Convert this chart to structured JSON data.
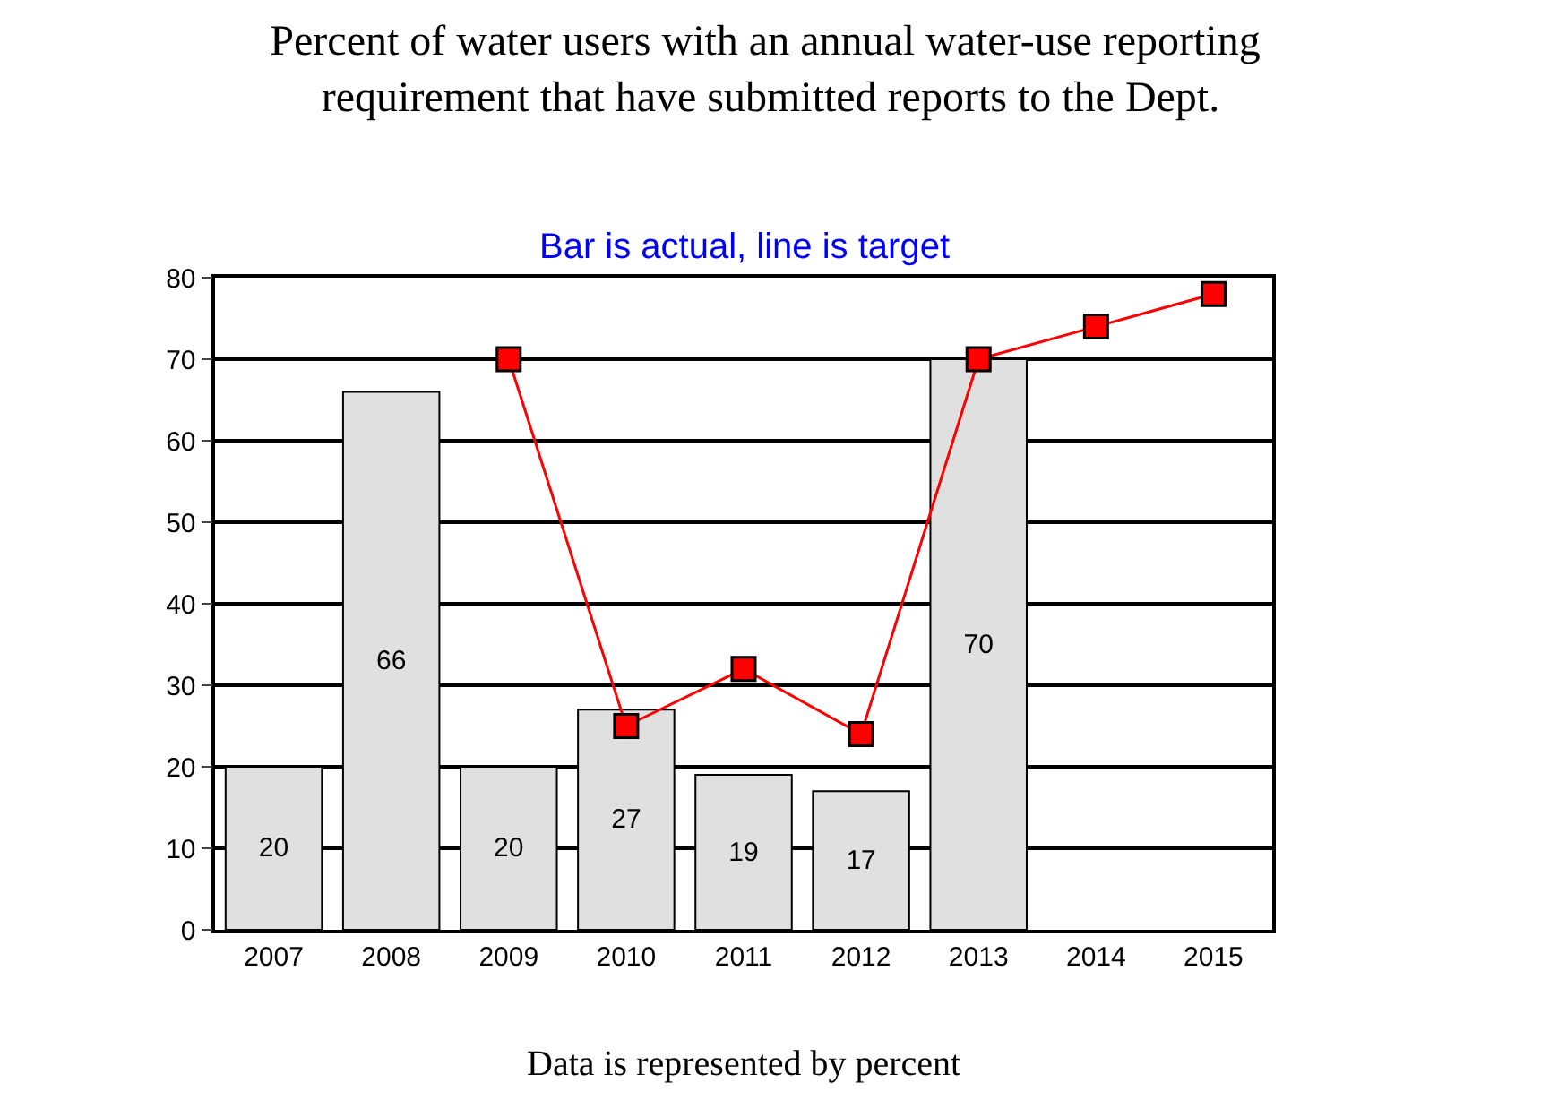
{
  "chart_data": {
    "type": "bar",
    "title": "Percent of water users with an annual water-use reporting requirement that have submitted reports to the Dept.",
    "subtitle": "Bar is actual, line is target",
    "categories": [
      "2007",
      "2008",
      "2009",
      "2010",
      "2011",
      "2012",
      "2013",
      "2014",
      "2015"
    ],
    "series": [
      {
        "color": "#e0e0e0",
        "values": [
          20,
          66,
          20,
          27,
          19,
          17,
          70,
          null,
          null
        ],
        "value_labels": [
          "20",
          "66",
          "20",
          "27",
          "19",
          "17",
          "70",
          null,
          null
        ]
      },
      {
        "type": "line",
        "color": "#ff0000",
        "marker": "square",
        "values": [
          null,
          null,
          70,
          25,
          32,
          24,
          70,
          74,
          78
        ]
      }
    ],
    "ylim": [
      0,
      80
    ],
    "yticks": [
      0,
      10,
      20,
      30,
      40,
      50,
      60,
      70,
      80
    ],
    "grid": "y",
    "annotations": [
      "Data is represented by percent"
    ]
  }
}
